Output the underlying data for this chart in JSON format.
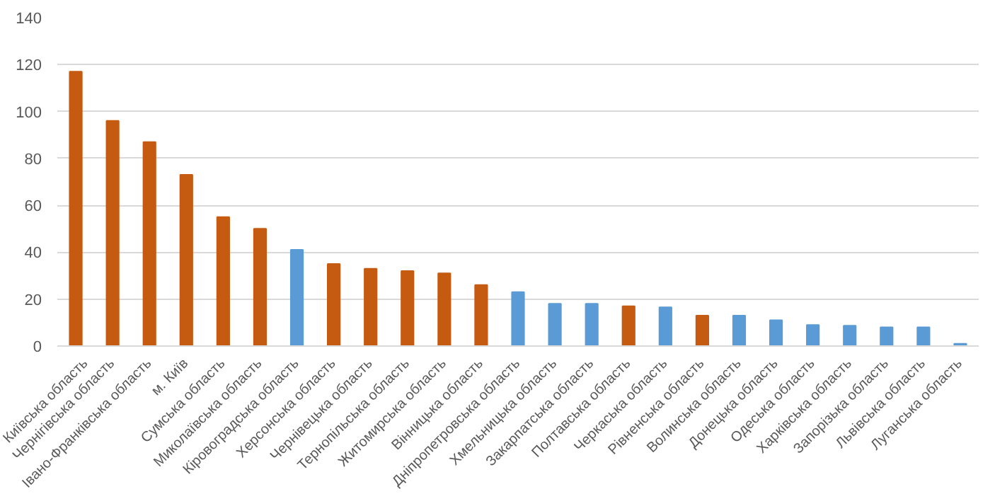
{
  "chart_data": {
    "type": "bar",
    "categories": [
      "Київська область",
      "Чернігівська область",
      "Івано-Франківська область",
      "м. Київ",
      "Сумська область",
      "Миколаївська область",
      "Кіровоградська область",
      "Херсонська область",
      "Чернівецька область",
      "Тернопільська область",
      "Житомирська область",
      "Вінницька область",
      "Дніпропетровська область",
      "Хмельницька область",
      "Закарпатська область",
      "Полтавська область",
      "Черкаська область",
      "Рівненська область",
      "Волинська область",
      "Донецька область",
      "Одеська область",
      "Харківська область",
      "Запорізька область",
      "Львівська область",
      "Луганська область"
    ],
    "values": [
      117,
      96,
      87,
      73,
      55,
      50,
      41,
      35,
      33,
      32,
      31,
      26,
      23,
      18,
      18,
      17,
      16.5,
      13,
      13,
      11,
      9,
      8.7,
      8,
      8,
      1
    ],
    "colors": [
      "#c55a11",
      "#c55a11",
      "#c55a11",
      "#c55a11",
      "#c55a11",
      "#c55a11",
      "#5b9bd5",
      "#c55a11",
      "#c55a11",
      "#c55a11",
      "#c55a11",
      "#c55a11",
      "#5b9bd5",
      "#5b9bd5",
      "#5b9bd5",
      "#c55a11",
      "#5b9bd5",
      "#c55a11",
      "#5b9bd5",
      "#5b9bd5",
      "#5b9bd5",
      "#5b9bd5",
      "#5b9bd5",
      "#5b9bd5",
      "#5b9bd5"
    ],
    "ylim": [
      0,
      140
    ],
    "yticks": [
      0,
      20,
      40,
      60,
      80,
      100,
      120,
      140
    ],
    "grid": "y"
  }
}
